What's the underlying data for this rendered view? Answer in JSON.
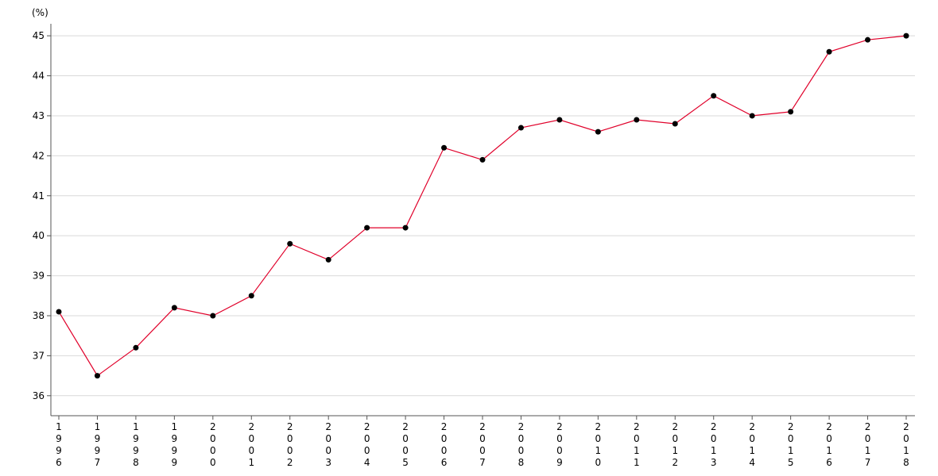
{
  "chart_data": {
    "type": "line",
    "title": "",
    "xlabel": "",
    "ylabel": "(%)",
    "ylim": [
      35.5,
      45.3
    ],
    "yticks": [
      36,
      37,
      38,
      39,
      40,
      41,
      42,
      43,
      44,
      45
    ],
    "grid": true,
    "legend": "none",
    "categories": [
      "1996",
      "1997",
      "1998",
      "1999",
      "2000",
      "2001",
      "2002",
      "2003",
      "2004",
      "2005",
      "2006",
      "2007",
      "2008",
      "2009",
      "2010",
      "2011",
      "2012",
      "2013",
      "2014",
      "2015",
      "2016",
      "2017",
      "2018"
    ],
    "series": [
      {
        "color": "#e0002a",
        "marker_color": "#000000",
        "values": [
          38.1,
          36.5,
          37.2,
          38.2,
          38.0,
          38.5,
          39.8,
          39.4,
          40.2,
          40.2,
          42.2,
          41.9,
          42.7,
          42.9,
          42.6,
          42.9,
          42.8,
          43.5,
          43.0,
          43.1,
          44.6,
          44.9,
          45.0
        ]
      }
    ]
  }
}
